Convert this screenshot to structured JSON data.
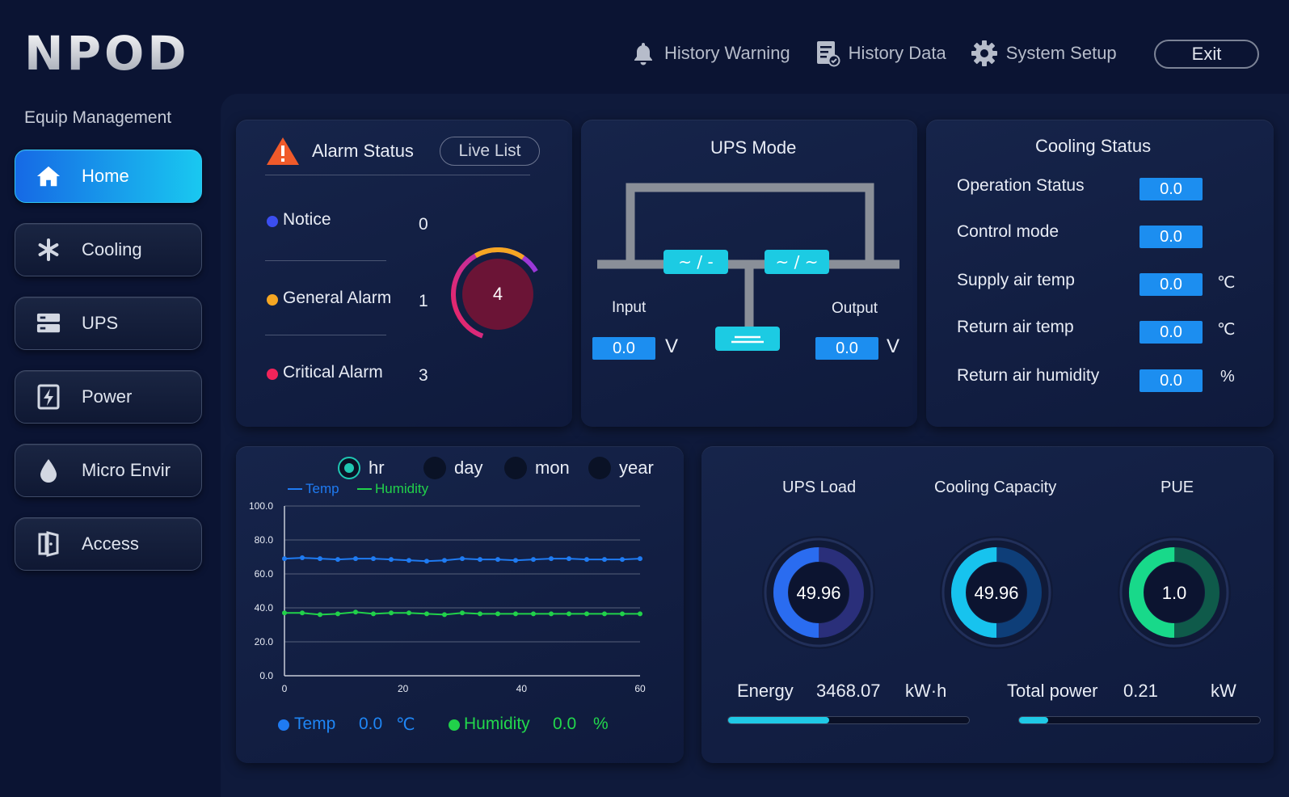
{
  "app": {
    "logo": "NPOD"
  },
  "header": {
    "nav": [
      {
        "label": "History Warning",
        "icon": "bell-icon"
      },
      {
        "label": "History Data",
        "icon": "report-icon"
      },
      {
        "label": "System Setup",
        "icon": "gear-icon"
      }
    ],
    "exit_label": "Exit"
  },
  "sidebar": {
    "title": "Equip Management",
    "items": [
      {
        "label": "Home",
        "icon": "home-icon",
        "active": true
      },
      {
        "label": "Cooling",
        "icon": "snowflake-icon",
        "active": false
      },
      {
        "label": "UPS",
        "icon": "ups-icon",
        "active": false
      },
      {
        "label": "Power",
        "icon": "power-icon",
        "active": false
      },
      {
        "label": "Micro Envir",
        "icon": "droplet-icon",
        "active": false
      },
      {
        "label": "Access",
        "icon": "door-icon",
        "active": false
      }
    ]
  },
  "alarm": {
    "title": "Alarm Status",
    "live_list_label": "Live List",
    "total": "4",
    "rows": [
      {
        "label": "Notice",
        "count": "0",
        "color": "#3b4ef0"
      },
      {
        "label": "General Alarm",
        "count": "1",
        "color": "#f5a623"
      },
      {
        "label": "Critical Alarm",
        "count": "3",
        "color": "#f0245a"
      }
    ]
  },
  "ups_mode": {
    "title": "UPS Mode",
    "input_label": "Input",
    "output_label": "Output",
    "input_value": "0.0",
    "output_value": "0.0",
    "unit": "V",
    "converter_glyph": "~ / -",
    "inverter_glyph": "~ / ~"
  },
  "cooling": {
    "title": "Cooling Status",
    "rows": [
      {
        "label": "Operation Status",
        "value": "0.0",
        "unit": ""
      },
      {
        "label": "Control mode",
        "value": "0.0",
        "unit": ""
      },
      {
        "label": "Supply air temp",
        "value": "0.0",
        "unit": "℃"
      },
      {
        "label": "Return air temp",
        "value": "0.0",
        "unit": "℃"
      },
      {
        "label": "Return air humidity",
        "value": "0.0",
        "unit": "%"
      }
    ]
  },
  "trend": {
    "ranges": [
      "hr",
      "day",
      "mon",
      "year"
    ],
    "selected_range": "hr",
    "footer": {
      "temp_label": "Temp",
      "temp_value": "0.0",
      "temp_unit": "℃",
      "hum_label": "Humidity",
      "hum_value": "0.0",
      "hum_unit": "%"
    }
  },
  "chart_data": {
    "type": "line",
    "x": [
      0,
      3,
      6,
      9,
      12,
      15,
      18,
      21,
      24,
      27,
      30,
      33,
      36,
      39,
      42,
      45,
      48,
      51,
      54,
      57,
      60
    ],
    "series": [
      {
        "name": "Temp",
        "color": "#1f7bf2",
        "values": [
          69,
          69.5,
          69,
          68.5,
          69,
          69,
          68.5,
          68,
          67.5,
          68,
          69,
          68.5,
          68.5,
          68,
          68.5,
          69,
          69,
          68.5,
          68.5,
          68.5,
          69
        ]
      },
      {
        "name": "Humidity",
        "color": "#21d14a",
        "values": [
          37,
          37,
          36,
          36.5,
          37.5,
          36.5,
          37,
          37,
          36.5,
          36,
          37,
          36.5,
          36.5,
          36.5,
          36.5,
          36.5,
          36.5,
          36.5,
          36.5,
          36.5,
          36.5
        ]
      }
    ],
    "xticks": [
      "0",
      "20",
      "40",
      "60"
    ],
    "yticks": [
      "0.0",
      "20.0",
      "40.0",
      "60.0",
      "80.0",
      "100.0"
    ],
    "xlim": [
      0,
      60
    ],
    "ylim": [
      0,
      100
    ],
    "grid": true,
    "legend": "top-left"
  },
  "gauges": [
    {
      "label": "UPS Load",
      "value": "49.96",
      "fraction": 0.5,
      "color": "#2a6cf0",
      "track": "#2a2f7a"
    },
    {
      "label": "Cooling Capacity",
      "value": "49.96",
      "fraction": 0.5,
      "color": "#17c3ee",
      "track": "#0e3e78"
    },
    {
      "label": "PUE",
      "value": "1.0",
      "fraction": 0.5,
      "color": "#18d98a",
      "track": "#0f5a4a"
    }
  ],
  "energy": {
    "label": "Energy",
    "value": "3468.07",
    "unit": "kW·h",
    "progress": 0.42
  },
  "total_power": {
    "label": "Total power",
    "value": "0.21",
    "unit": "kW",
    "progress": 0.12
  },
  "colors": {
    "accent": "#1c8ef0",
    "panel": "#16244a",
    "background": "#0b1433"
  }
}
